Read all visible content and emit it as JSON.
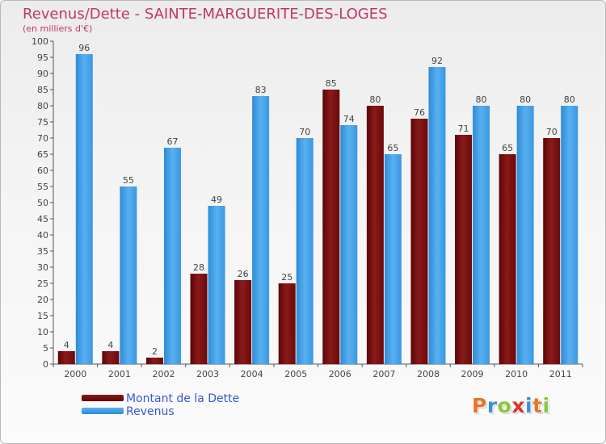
{
  "title": "Revenus/Dette - SAINTE-MARGUERITE-DES-LOGES",
  "subtitle": "(en milliers d'€)",
  "legend": {
    "debt": "Montant de la Dette",
    "revenue": "Revenus"
  },
  "logo": {
    "text": "Proxiti",
    "colors": [
      "#e8742a",
      "#3c8fd8",
      "#8cc63f",
      "#d9342b",
      "#3c8fd8",
      "#e8742a",
      "#8cc63f"
    ]
  },
  "colors": {
    "debt": "#7a0f10",
    "revenue": "#3f9ee8",
    "title": "#c0395e",
    "legend_text": "#3a56d6"
  },
  "chart_data": {
    "type": "bar",
    "title": "Revenus/Dette - SAINTE-MARGUERITE-DES-LOGES",
    "subtitle": "(en milliers d'€)",
    "categories": [
      "2000",
      "2001",
      "2002",
      "2003",
      "2004",
      "2005",
      "2006",
      "2007",
      "2008",
      "2009",
      "2010",
      "2011"
    ],
    "series": [
      {
        "name": "Montant de la Dette",
        "values": [
          4,
          4,
          2,
          28,
          26,
          25,
          85,
          80,
          76,
          71,
          65,
          70
        ]
      },
      {
        "name": "Revenus",
        "values": [
          96,
          55,
          67,
          49,
          83,
          70,
          74,
          65,
          92,
          80,
          80,
          80
        ]
      }
    ],
    "ylim": [
      0,
      100
    ],
    "ytick_step": 5,
    "grid": false,
    "legend_position": "bottom-left"
  }
}
